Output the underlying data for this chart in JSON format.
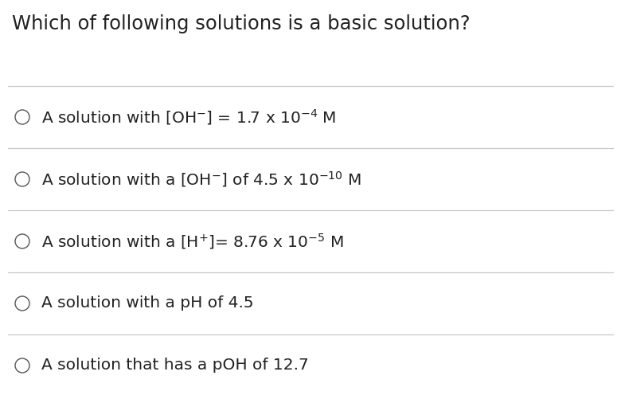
{
  "title": "Which of following solutions is a basic solution?",
  "title_fontsize": 17.5,
  "background_color": "#ffffff",
  "text_color": "#222222",
  "line_color": "#c8c8c8",
  "circle_color": "#555555",
  "option_fontsize": 14.5,
  "options_plain": [
    "A solution with [OH",
    "A solution with a [OH",
    "A solution with a [H",
    "A solution with a pH of 4.5",
    "A solution that has a pOH of 12.7"
  ],
  "option_suffixes": [
    "] = 1.7 x 10",
    "] of 4.5 x 10",
    "]= 8.76 x 10",
    "",
    ""
  ],
  "superscripts": [
    [
      "⁻4",
      " M"
    ],
    [
      "⁻10",
      " M"
    ],
    [
      "⁻5",
      " M"
    ],
    [
      "",
      ""
    ],
    [
      "",
      ""
    ]
  ],
  "ion_superscripts": [
    "⁻",
    "⁻",
    "+",
    "",
    ""
  ],
  "has_ion": [
    true,
    true,
    true,
    false,
    false
  ],
  "fig_width": 7.8,
  "fig_height": 4.96,
  "dpi": 100
}
